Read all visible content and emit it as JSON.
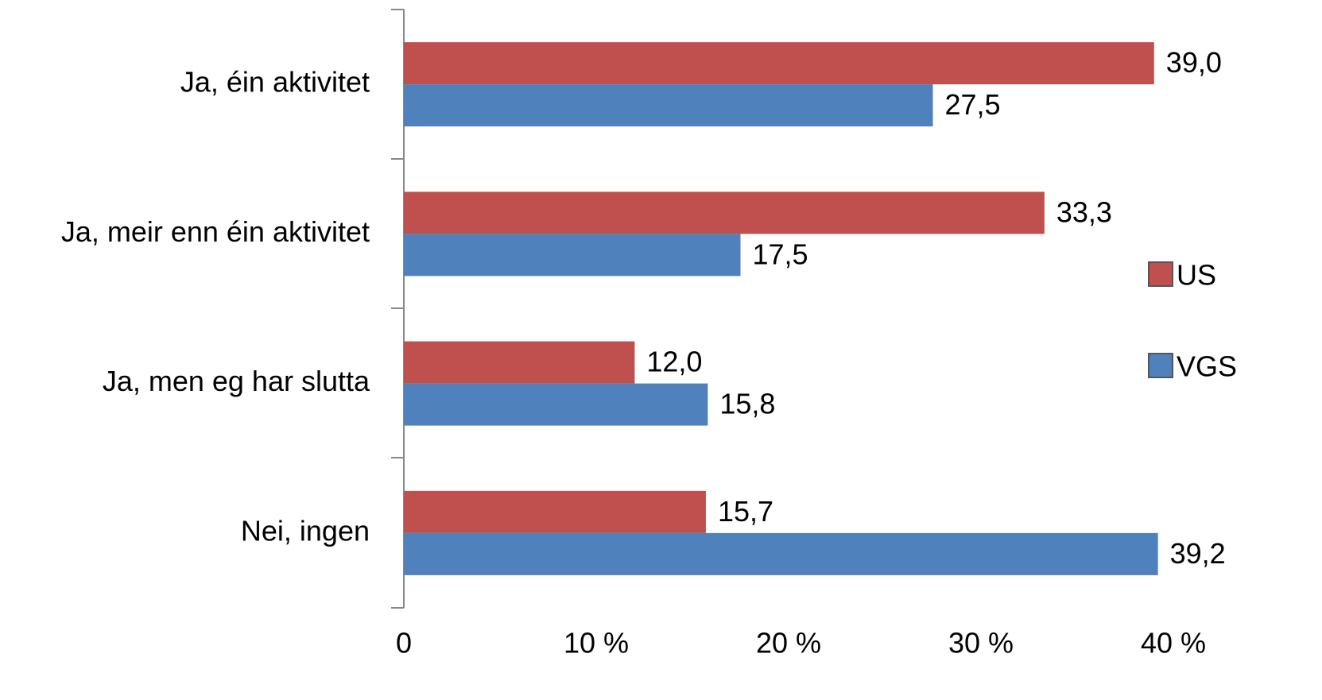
{
  "chart_data": {
    "type": "bar",
    "orientation": "horizontal",
    "categories": [
      "Ja, éin aktivitet",
      "Ja, meir enn éin aktivitet",
      "Ja, men eg har slutta",
      "Nei, ingen"
    ],
    "series": [
      {
        "name": "US",
        "color": "#c0504d",
        "values": [
          39.0,
          33.3,
          12.0,
          15.7
        ],
        "value_labels": [
          "39,0",
          "33,3",
          "12,0",
          "15,7"
        ]
      },
      {
        "name": "VGS",
        "color": "#4f81bd",
        "values": [
          27.5,
          17.5,
          15.8,
          39.2
        ],
        "value_labels": [
          "27,5",
          "17,5",
          "15,8",
          "39,2"
        ]
      }
    ],
    "xlim": [
      0,
      40
    ],
    "xticks": [
      0,
      {
        "value": 10,
        "label": "10 %"
      },
      {
        "value": 20,
        "label": "20 %"
      },
      {
        "value": 30,
        "label": "30 %"
      },
      {
        "value": 40,
        "label": "40 %"
      }
    ],
    "legend": "right"
  }
}
